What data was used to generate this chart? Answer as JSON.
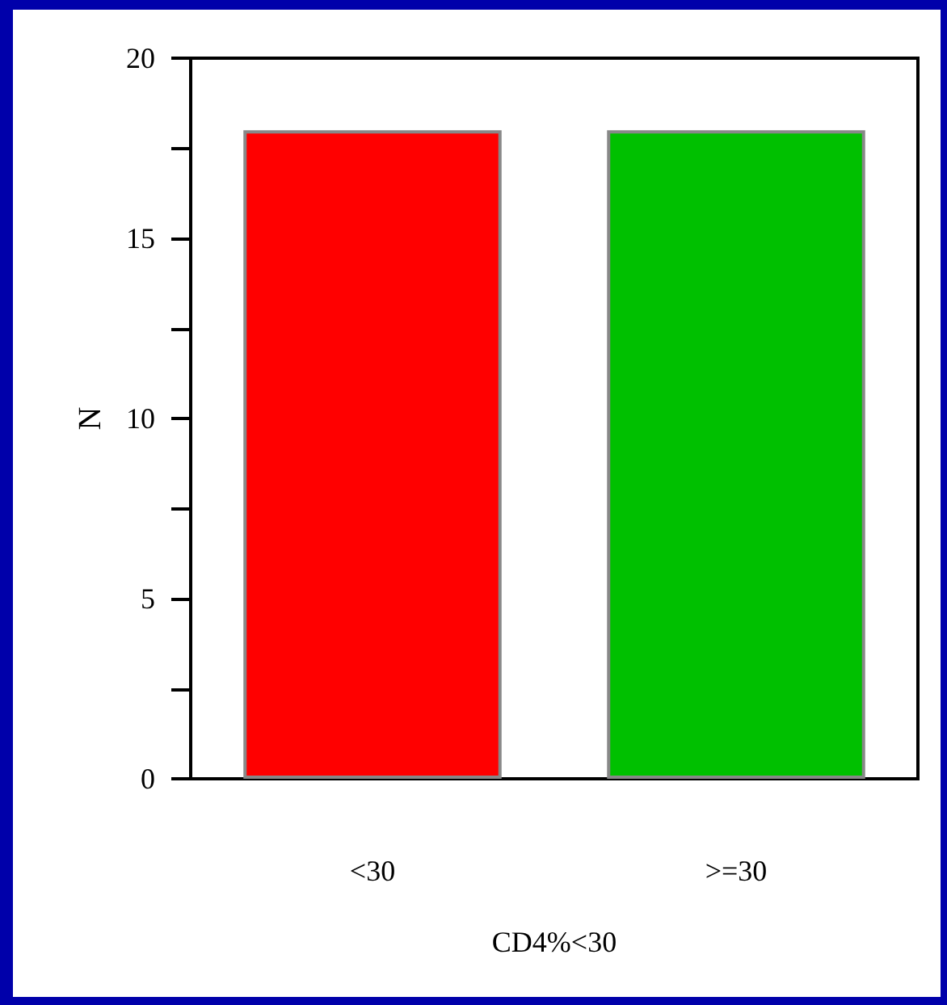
{
  "chart_data": {
    "type": "bar",
    "xlabel": "CD4%<30",
    "ylabel": "N",
    "categories": [
      "<30",
      ">=30"
    ],
    "values": [
      18,
      18
    ],
    "colors": [
      "#ff0000",
      "#00c000"
    ],
    "ylim": [
      0,
      20
    ],
    "yticks": [
      0,
      {
        "value": 2.5,
        "label": null
      },
      5,
      {
        "value": 7.5,
        "label": null
      },
      10,
      {
        "value": 12.5,
        "label": null
      },
      15,
      {
        "value": 17.5,
        "label": null
      },
      20
    ],
    "grid": false
  }
}
